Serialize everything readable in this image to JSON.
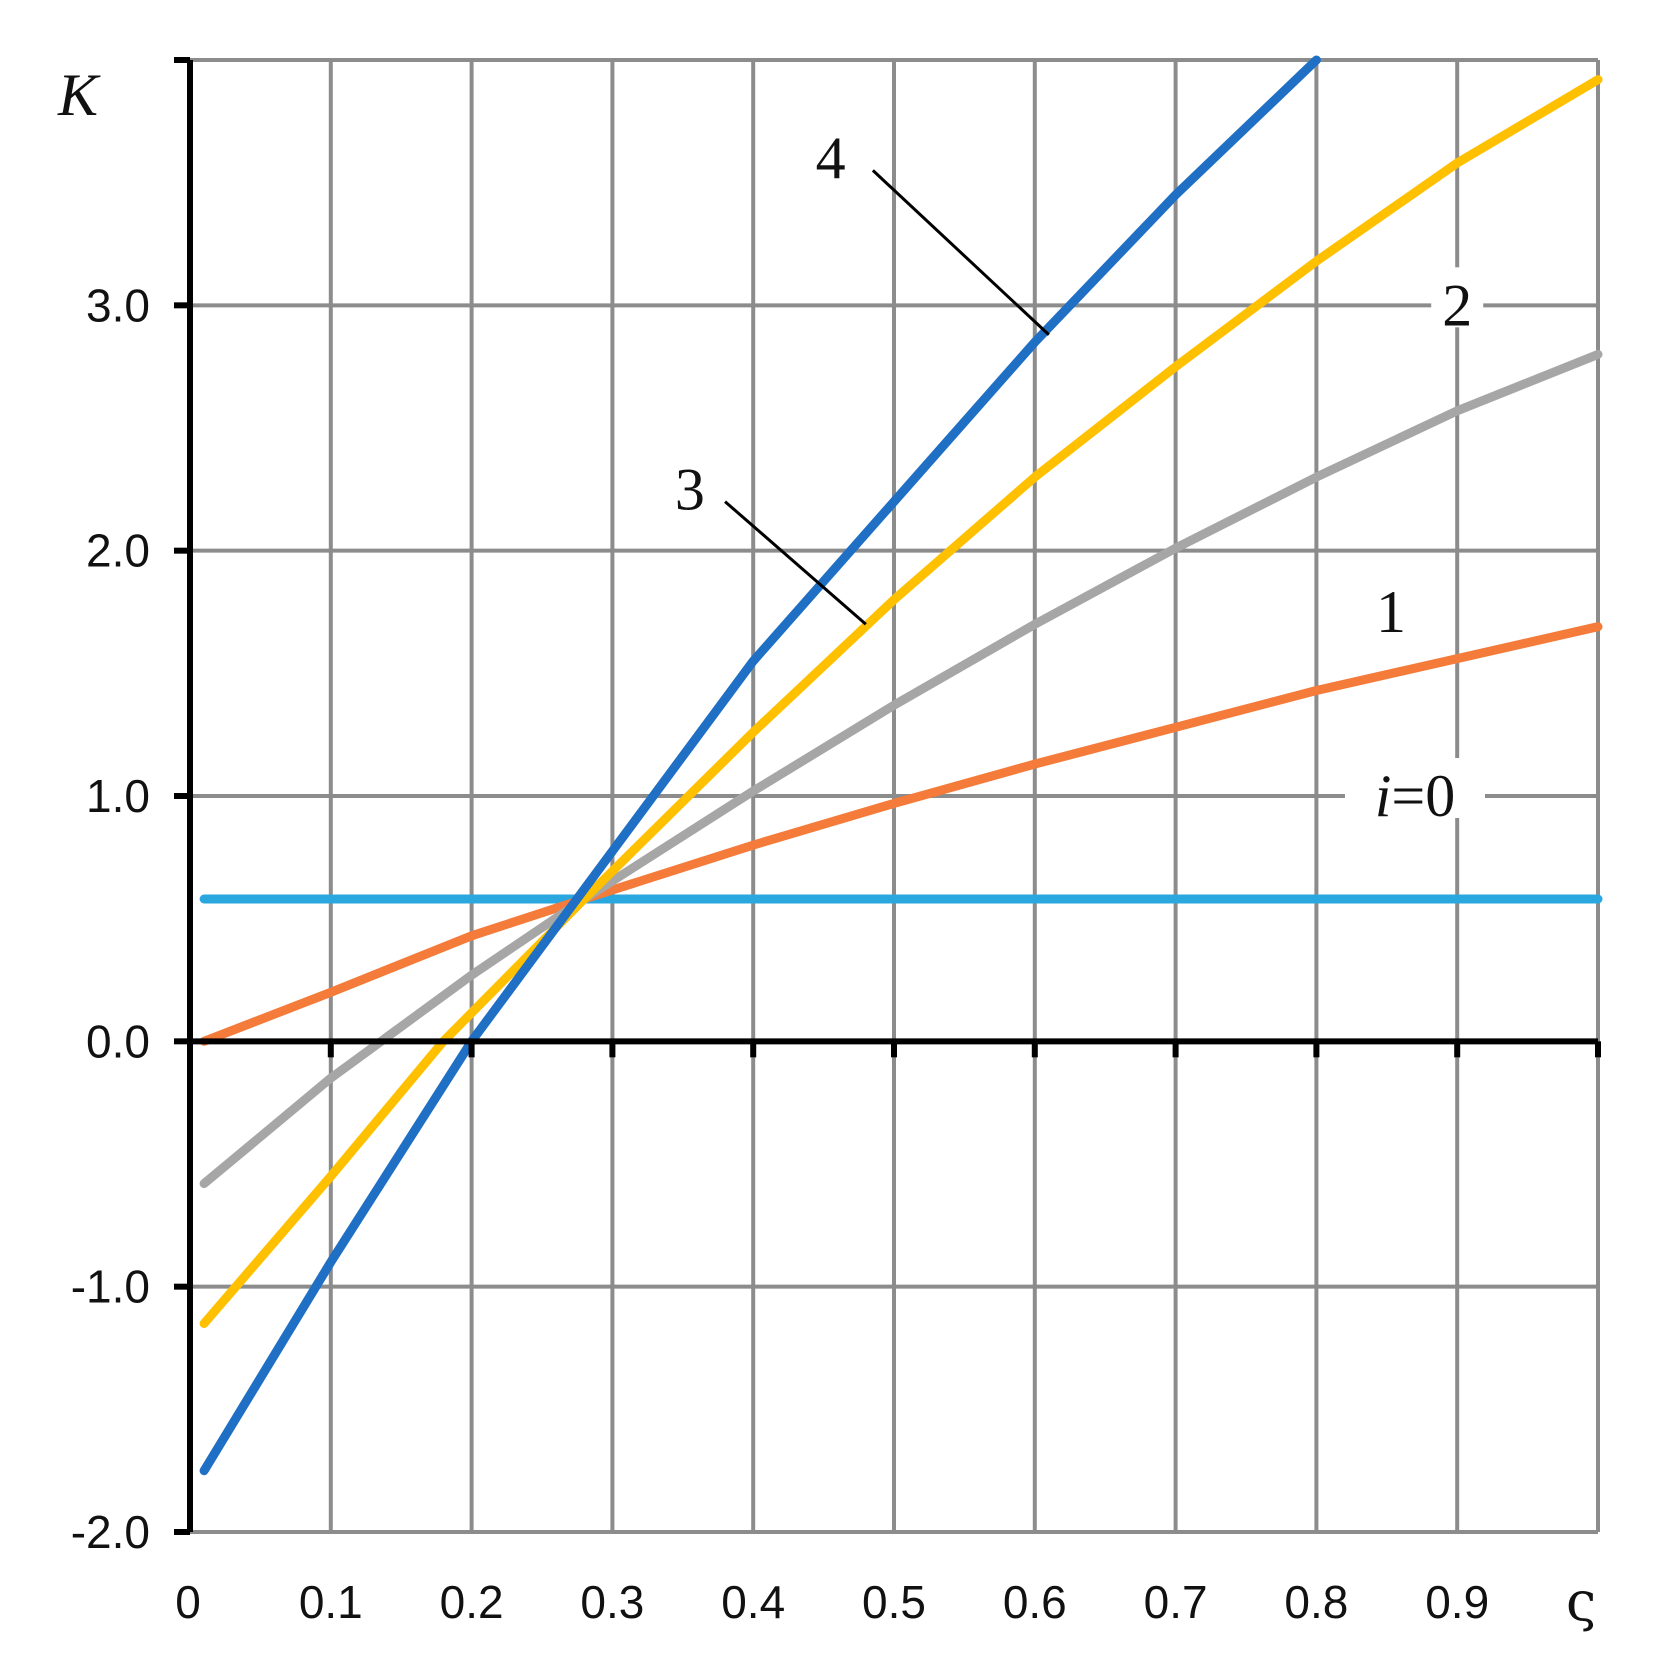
{
  "chart_data": {
    "type": "line",
    "title": "",
    "xlabel": "ς",
    "ylabel": "K",
    "xlim": [
      0,
      1.0
    ],
    "ylim": [
      -2.0,
      4.0
    ],
    "grid": true,
    "x_ticks": [
      0,
      0.1,
      0.2,
      0.3,
      0.4,
      0.5,
      0.6,
      0.7,
      0.8,
      0.9
    ],
    "x_tick_labels": [
      "0",
      "0.1",
      "0.2",
      "0.3",
      "0.4",
      "0.5",
      "0.6",
      "0.7",
      "0.8",
      "0.9"
    ],
    "y_ticks": [
      -2.0,
      -1.0,
      0.0,
      1.0,
      2.0,
      3.0
    ],
    "y_tick_labels": [
      "-2.0",
      "-1.0",
      "0.0",
      "1.0",
      "2.0",
      "3.0"
    ],
    "series": [
      {
        "name": "i=0",
        "color": "#2aa7df",
        "x": [
          0.01,
          1.0
        ],
        "y": [
          0.58,
          0.58
        ]
      },
      {
        "name": "1",
        "color": "#f47b3a",
        "x": [
          0.01,
          0.1,
          0.2,
          0.28,
          0.4,
          0.5,
          0.6,
          0.7,
          0.8,
          0.9,
          1.0
        ],
        "y": [
          0.0,
          0.2,
          0.43,
          0.58,
          0.8,
          0.97,
          1.13,
          1.28,
          1.43,
          1.56,
          1.69
        ]
      },
      {
        "name": "2",
        "color": "#a6a6a6",
        "x": [
          0.01,
          0.1,
          0.2,
          0.28,
          0.4,
          0.5,
          0.6,
          0.7,
          0.8,
          0.9,
          1.0
        ],
        "y": [
          -0.58,
          -0.15,
          0.27,
          0.58,
          1.02,
          1.37,
          1.7,
          2.01,
          2.3,
          2.57,
          2.8
        ]
      },
      {
        "name": "3",
        "color": "#ffc000",
        "x": [
          0.01,
          0.1,
          0.18,
          0.28,
          0.4,
          0.5,
          0.6,
          0.7,
          0.8,
          0.9,
          1.0
        ],
        "y": [
          -1.15,
          -0.55,
          0.0,
          0.58,
          1.26,
          1.8,
          2.3,
          2.75,
          3.18,
          3.58,
          3.92
        ]
      },
      {
        "name": "4",
        "color": "#1f6fc5",
        "x": [
          0.01,
          0.1,
          0.2,
          0.28,
          0.4,
          0.5,
          0.6,
          0.7,
          0.8
        ],
        "y": [
          -1.75,
          -0.9,
          0.0,
          0.62,
          1.55,
          2.2,
          2.85,
          3.45,
          4.0
        ]
      }
    ],
    "annotations": [
      {
        "label": "i=0",
        "x": 0.87,
        "y": 1.0,
        "style": "italic-i"
      },
      {
        "label": "1",
        "x": 0.853,
        "y": 1.75
      },
      {
        "label": "2",
        "x": 0.9,
        "y": 3.0
      },
      {
        "label": "3",
        "x": 0.355,
        "y": 2.25,
        "leader": [
          0.38,
          2.2,
          0.48,
          1.7
        ]
      },
      {
        "label": "4",
        "x": 0.455,
        "y": 3.6,
        "leader": [
          0.485,
          3.55,
          0.61,
          2.88
        ]
      }
    ]
  }
}
